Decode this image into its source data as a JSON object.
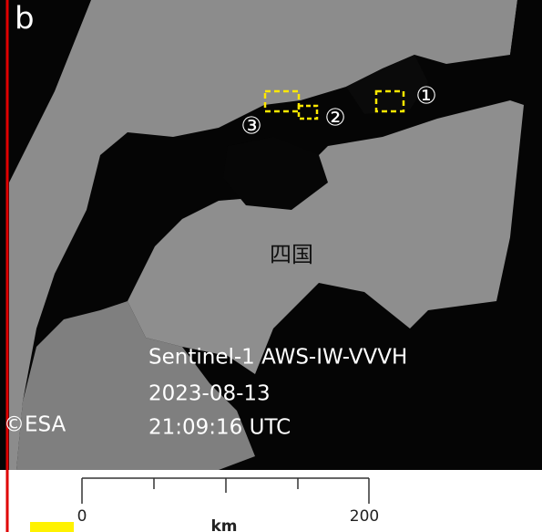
{
  "panel_label": "b",
  "markers": [
    "①",
    "②",
    "③"
  ],
  "region_label": "四国",
  "caption": [
    "Sentinel-1 AWS-IW-VVVH",
    "2023-08-13",
    "21:09:16 UTC"
  ],
  "credit": "©ESA",
  "scale_bar": {
    "labels": [
      "0",
      "200"
    ],
    "unit": "km"
  }
}
